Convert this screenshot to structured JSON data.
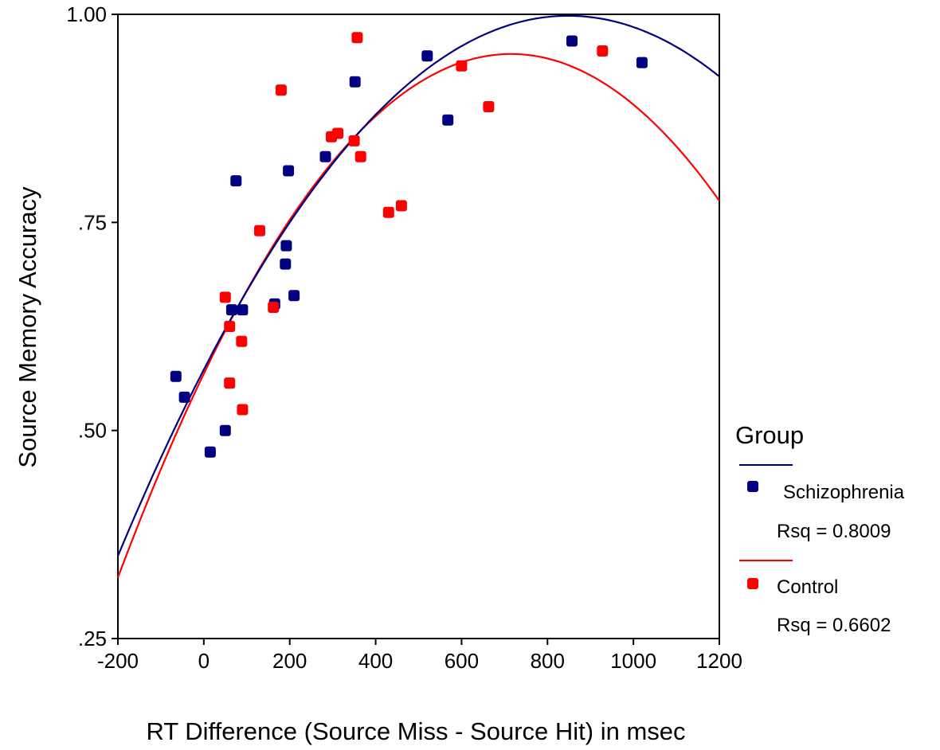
{
  "chart_data": {
    "type": "scatter",
    "xlabel": "RT Difference (Source Miss - Source Hit) in msec",
    "ylabel": "Source Memory Accuracy",
    "xlim": [
      -200,
      1200
    ],
    "ylim": [
      0.25,
      1.0
    ],
    "x_ticks": [
      -200,
      0,
      200,
      400,
      600,
      800,
      1000,
      1200
    ],
    "x_tick_labels": [
      "-200",
      "0",
      "200",
      "400",
      "600",
      "800",
      "1000",
      "1200"
    ],
    "y_ticks": [
      0.25,
      0.5,
      0.75,
      1.0
    ],
    "y_tick_labels": [
      ".25",
      ".50",
      ".75",
      "1.00"
    ],
    "grid": false,
    "legend": {
      "title": "Group",
      "placement": "right"
    },
    "series": [
      {
        "name": "Schizophrenia",
        "rsq_label": "Rsq = 0.8009",
        "color": "#000080",
        "points": [
          {
            "x": -65,
            "y": 0.565
          },
          {
            "x": -45,
            "y": 0.54
          },
          {
            "x": 15,
            "y": 0.474
          },
          {
            "x": 50,
            "y": 0.5
          },
          {
            "x": 65,
            "y": 0.645
          },
          {
            "x": 75,
            "y": 0.8
          },
          {
            "x": 90,
            "y": 0.645
          },
          {
            "x": 165,
            "y": 0.652
          },
          {
            "x": 190,
            "y": 0.7
          },
          {
            "x": 192,
            "y": 0.722
          },
          {
            "x": 197,
            "y": 0.812
          },
          {
            "x": 210,
            "y": 0.662
          },
          {
            "x": 283,
            "y": 0.829
          },
          {
            "x": 352,
            "y": 0.919
          },
          {
            "x": 520,
            "y": 0.95
          },
          {
            "x": 568,
            "y": 0.873
          },
          {
            "x": 857,
            "y": 0.968
          },
          {
            "x": 1020,
            "y": 0.942
          }
        ],
        "fit": {
          "type": "quadratic",
          "a": 0.5732,
          "b": 0.001002,
          "c": -5.905e-07
        }
      },
      {
        "name": "Control",
        "rsq_label": "Rsq = 0.6602",
        "color": "#ff0000",
        "points": [
          {
            "x": 50,
            "y": 0.66
          },
          {
            "x": 60,
            "y": 0.625
          },
          {
            "x": 60,
            "y": 0.557
          },
          {
            "x": 88,
            "y": 0.607
          },
          {
            "x": 90,
            "y": 0.525
          },
          {
            "x": 130,
            "y": 0.74
          },
          {
            "x": 162,
            "y": 0.648
          },
          {
            "x": 180,
            "y": 0.909
          },
          {
            "x": 297,
            "y": 0.853
          },
          {
            "x": 312,
            "y": 0.857
          },
          {
            "x": 350,
            "y": 0.848
          },
          {
            "x": 357,
            "y": 0.972
          },
          {
            "x": 365,
            "y": 0.829
          },
          {
            "x": 430,
            "y": 0.762
          },
          {
            "x": 460,
            "y": 0.77
          },
          {
            "x": 600,
            "y": 0.938
          },
          {
            "x": 663,
            "y": 0.889
          },
          {
            "x": 928,
            "y": 0.956
          }
        ],
        "fit": {
          "type": "quadratic",
          "a": 0.5682,
          "b": 0.001074,
          "c": -7.507e-07
        }
      }
    ]
  }
}
